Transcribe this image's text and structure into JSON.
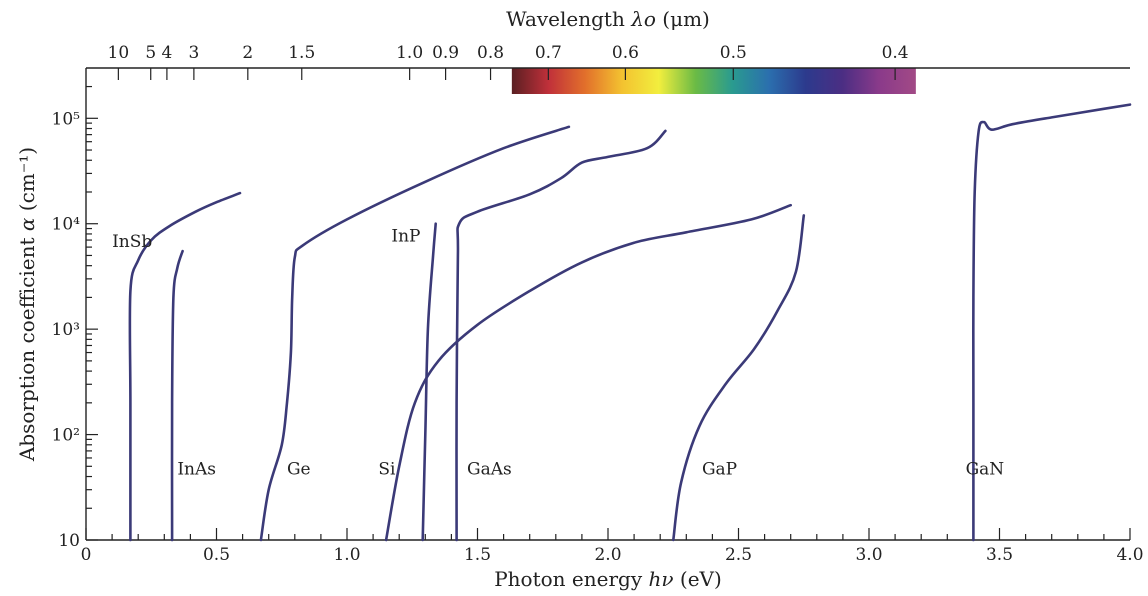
{
  "chart_data": {
    "type": "line",
    "x_axis": {
      "label_prefix": "Photon energy",
      "label_var": "hν",
      "label_unit": "(eV)",
      "range": [
        0,
        4.0
      ],
      "ticks": [
        {
          "value": 0,
          "label": "0"
        },
        {
          "value": 0.5,
          "label": "0.5"
        },
        {
          "value": 1.0,
          "label": "1.0"
        },
        {
          "value": 1.5,
          "label": "1.5"
        },
        {
          "value": 2.0,
          "label": "2.0"
        },
        {
          "value": 2.5,
          "label": "2.5"
        },
        {
          "value": 3.0,
          "label": "3.0"
        },
        {
          "value": 3.5,
          "label": "3.5"
        },
        {
          "value": 4.0,
          "label": "4.0"
        }
      ]
    },
    "y_axis": {
      "label_prefix": "Absorption coefficient",
      "label_var": "α",
      "label_unit": "(cm⁻¹)",
      "scale": "log",
      "range": [
        10,
        300000
      ],
      "ticks": [
        {
          "value": 10,
          "label": "10"
        },
        {
          "value": 100,
          "label": "10²"
        },
        {
          "value": 1000,
          "label": "10³"
        },
        {
          "value": 10000,
          "label": "10⁴"
        },
        {
          "value": 100000,
          "label": "10⁵"
        }
      ]
    },
    "top_axis": {
      "label_prefix": "Wavelength",
      "label_var": "λo",
      "label_unit": "(μm)",
      "quantity": "wavelength_um",
      "labeled_ticks": [
        {
          "value": 10,
          "label": "10"
        },
        {
          "value": 5,
          "label": "5"
        },
        {
          "value": 4,
          "label": "4"
        },
        {
          "value": 3,
          "label": "3"
        },
        {
          "value": 2,
          "label": "2"
        },
        {
          "value": 1.5,
          "label": "1.5"
        },
        {
          "value": 1.0,
          "label": "1.0"
        },
        {
          "value": 0.9,
          "label": "0.9"
        },
        {
          "value": 0.8,
          "label": "0.8"
        },
        {
          "value": 0.7,
          "label": "0.7"
        },
        {
          "value": 0.6,
          "label": "0.6"
        },
        {
          "value": 0.5,
          "label": "0.5"
        },
        {
          "value": 0.4,
          "label": "0.4"
        }
      ],
      "spectrum_band_um": [
        0.76,
        0.39
      ],
      "spectrum_colors": [
        "#5a1f22",
        "#c0303a",
        "#e2702b",
        "#f3c230",
        "#f2ee3e",
        "#6bbb45",
        "#2a9b8f",
        "#2b6fae",
        "#2c3a8d",
        "#4b2e83",
        "#8a3a8a",
        "#a24a86"
      ]
    },
    "series": [
      {
        "name": "InSb",
        "points": [
          [
            0.17,
            10
          ],
          [
            0.17,
            200
          ],
          [
            0.17,
            2300
          ],
          [
            0.2,
            4500
          ],
          [
            0.25,
            7000
          ],
          [
            0.32,
            9500
          ],
          [
            0.42,
            13000
          ],
          [
            0.5,
            16000
          ],
          [
            0.59,
            19500
          ]
        ]
      },
      {
        "name": "InAs",
        "points": [
          [
            0.33,
            10
          ],
          [
            0.33,
            200
          ],
          [
            0.335,
            2000
          ],
          [
            0.35,
            3800
          ],
          [
            0.37,
            5500
          ]
        ]
      },
      {
        "name": "Ge",
        "points": [
          [
            0.67,
            10
          ],
          [
            0.7,
            30
          ],
          [
            0.75,
            80
          ],
          [
            0.77,
            200
          ],
          [
            0.785,
            600
          ],
          [
            0.79,
            2000
          ],
          [
            0.8,
            4800
          ],
          [
            0.83,
            6200
          ],
          [
            1.0,
            11000
          ],
          [
            1.3,
            25000
          ],
          [
            1.6,
            52000
          ],
          [
            1.85,
            83000
          ]
        ]
      },
      {
        "name": "Si",
        "points": [
          [
            1.15,
            10
          ],
          [
            1.2,
            50
          ],
          [
            1.26,
            200
          ],
          [
            1.35,
            500
          ],
          [
            1.5,
            1100
          ],
          [
            1.7,
            2300
          ],
          [
            1.9,
            4300
          ],
          [
            2.1,
            6600
          ],
          [
            2.3,
            8300
          ],
          [
            2.55,
            11000
          ],
          [
            2.7,
            15000
          ]
        ]
      },
      {
        "name": "InP",
        "points": [
          [
            1.29,
            10
          ],
          [
            1.3,
            100
          ],
          [
            1.31,
            1000
          ],
          [
            1.33,
            5000
          ],
          [
            1.34,
            10000
          ]
        ]
      },
      {
        "name": "GaAs",
        "points": [
          [
            1.42,
            10
          ],
          [
            1.42,
            200
          ],
          [
            1.425,
            5000
          ],
          [
            1.43,
            10000
          ],
          [
            1.5,
            13000
          ],
          [
            1.7,
            19000
          ],
          [
            1.82,
            27000
          ],
          [
            1.9,
            38000
          ],
          [
            2.0,
            43000
          ],
          [
            2.15,
            52000
          ],
          [
            2.22,
            76000
          ]
        ]
      },
      {
        "name": "GaP",
        "points": [
          [
            2.25,
            10
          ],
          [
            2.28,
            35
          ],
          [
            2.35,
            120
          ],
          [
            2.45,
            300
          ],
          [
            2.56,
            650
          ],
          [
            2.65,
            1500
          ],
          [
            2.72,
            3500
          ],
          [
            2.75,
            12000
          ]
        ]
      },
      {
        "name": "GaN",
        "points": [
          [
            3.4,
            10
          ],
          [
            3.4,
            200
          ],
          [
            3.4,
            2000
          ],
          [
            3.405,
            20000
          ],
          [
            3.42,
            75000
          ],
          [
            3.44,
            92000
          ],
          [
            3.47,
            78000
          ],
          [
            3.55,
            88000
          ],
          [
            3.7,
            102000
          ],
          [
            3.9,
            123000
          ],
          [
            4.0,
            135000
          ]
        ]
      }
    ],
    "label_anchors": [
      {
        "name": "InSb",
        "x": 0.1,
        "y": 6000
      },
      {
        "name": "InAs",
        "x": 0.35,
        "y": 42
      },
      {
        "name": "Ge",
        "x": 0.77,
        "y": 42
      },
      {
        "name": "Si",
        "x": 1.12,
        "y": 42
      },
      {
        "name": "InP",
        "x": 1.17,
        "y": 6800
      },
      {
        "name": "GaAs",
        "x": 1.46,
        "y": 42
      },
      {
        "name": "GaP",
        "x": 2.36,
        "y": 42
      },
      {
        "name": "GaN",
        "x": 3.37,
        "y": 42
      }
    ],
    "line_color": "#3b3a78",
    "grid": false,
    "legend": "none (direct labels on curves)"
  }
}
